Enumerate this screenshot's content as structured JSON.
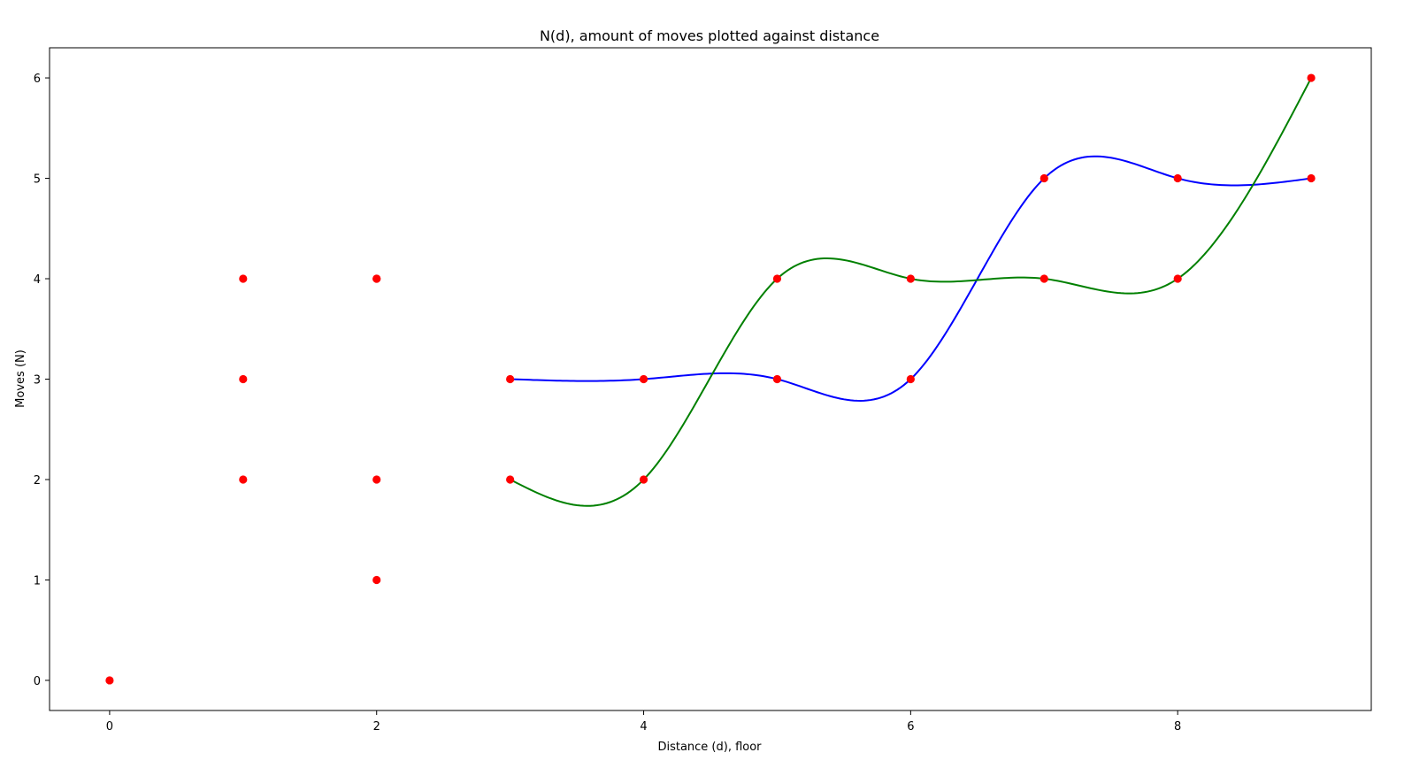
{
  "chart_data": {
    "type": "scatter",
    "title": "N(d), amount of moves plotted against distance",
    "xlabel": "Distance (d), floor",
    "ylabel": "Moves (N)",
    "xlim": [
      -0.45,
      9.45
    ],
    "ylim": [
      -0.3,
      6.3
    ],
    "xticks": [
      0,
      2,
      4,
      6,
      8
    ],
    "yticks": [
      0,
      1,
      2,
      3,
      4,
      5,
      6
    ],
    "grid": false,
    "points": {
      "color": "#ff0000",
      "x": [
        0,
        1,
        1,
        1,
        2,
        2,
        2,
        2,
        3,
        3,
        4,
        4,
        5,
        5,
        6,
        6,
        7,
        7,
        8,
        8,
        9,
        9
      ],
      "y": [
        0,
        2,
        3,
        4,
        1,
        2,
        4,
        4,
        2,
        3,
        2,
        3,
        3,
        4,
        3,
        4,
        4,
        5,
        4,
        5,
        5,
        6
      ]
    },
    "series": [
      {
        "color": "#0000ff",
        "type": "line",
        "x": [
          3,
          4,
          5,
          6,
          7,
          8,
          9
        ],
        "y": [
          3,
          3,
          3,
          3,
          5,
          5,
          5
        ]
      },
      {
        "color": "#008000",
        "type": "line",
        "x": [
          3,
          4,
          5,
          6,
          7,
          8,
          9
        ],
        "y": [
          2,
          2,
          4,
          4,
          4,
          4,
          6
        ]
      }
    ]
  }
}
